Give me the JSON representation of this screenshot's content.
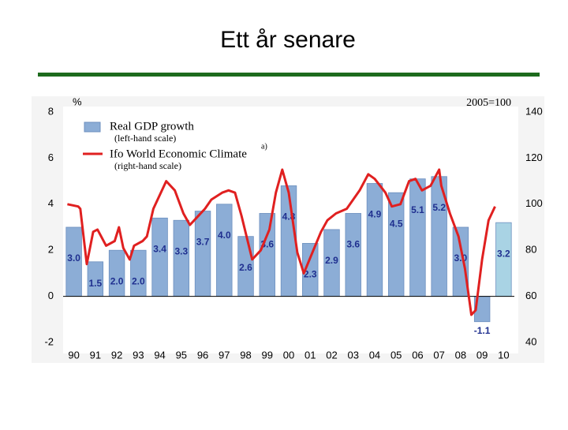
{
  "title": "Ett år senare",
  "chart_data": {
    "type": "bar",
    "categories": [
      "90",
      "91",
      "92",
      "93",
      "94",
      "95",
      "96",
      "97",
      "98",
      "99",
      "00",
      "01",
      "02",
      "03",
      "04",
      "05",
      "06",
      "07",
      "08",
      "09",
      "10"
    ],
    "ylabel": "%",
    "y2label": "2005=100",
    "ylim": [
      -2,
      8
    ],
    "yticks": [
      -2,
      0,
      2,
      4,
      6,
      8
    ],
    "y2lim": [
      40,
      140
    ],
    "y2ticks": [
      40,
      60,
      80,
      100,
      120,
      140
    ],
    "xlim": [
      1989.5,
      2010.5
    ],
    "series": [
      {
        "name": "Real GDP growth",
        "note_label": "(left-hand scale)",
        "color": "#8cadd6",
        "forecast_color": "#a9d3e4",
        "values": [
          3.0,
          1.5,
          2.0,
          2.0,
          3.4,
          3.3,
          3.7,
          4.0,
          2.6,
          3.6,
          4.8,
          2.3,
          2.9,
          3.6,
          4.9,
          4.5,
          5.1,
          5.2,
          3.0,
          -1.1,
          3.2
        ],
        "value_labels": [
          "3.0",
          "1.5",
          "2.0",
          "2.0",
          "3.4",
          "3.3",
          "3.7",
          "4.0",
          "2.6",
          "3.6",
          "4.8",
          "2.3",
          "2.9",
          "3.6",
          "4.9",
          "4.5",
          "5.1",
          "5.2",
          "3.0",
          "-1.1",
          "3.2"
        ]
      },
      {
        "name": "Ifo World Economic Climate",
        "superscript": "a)",
        "note_label": "(right-hand scale)",
        "color": "#e02020",
        "axis": "y2",
        "x": [
          1989.7,
          1990.2,
          1990.3,
          1990.6,
          1990.9,
          1991.1,
          1991.5,
          1991.9,
          1992.1,
          1992.3,
          1992.6,
          1992.8,
          1993.2,
          1993.4,
          1993.7,
          1994.3,
          1994.7,
          1995.1,
          1995.4,
          1995.7,
          1996.1,
          1996.4,
          1996.9,
          1997.2,
          1997.5,
          1997.8,
          1998.3,
          1998.7,
          1999.1,
          1999.4,
          1999.7,
          2000.0,
          2000.4,
          2000.7,
          2001.1,
          2001.5,
          2001.8,
          2002.2,
          2002.7,
          2003.3,
          2003.7,
          2004.0,
          2004.5,
          2004.8,
          2005.2,
          2005.6,
          2005.9,
          2006.2,
          2006.6,
          2007.0,
          2007.1,
          2007.5,
          2007.9,
          2008.2,
          2008.5,
          2008.7,
          2009.0,
          2009.3,
          2009.6
        ],
        "values": [
          100,
          99,
          98,
          74,
          88,
          89,
          82,
          84,
          90,
          81,
          76,
          82,
          84,
          86,
          98,
          110,
          106,
          96,
          91,
          94,
          98,
          102,
          105,
          106,
          105,
          95,
          76,
          80,
          89,
          105,
          115,
          105,
          79,
          70,
          79,
          88,
          93,
          96,
          98,
          106,
          113,
          111,
          105,
          99,
          100,
          110,
          111,
          106,
          108,
          115,
          108,
          96,
          86,
          72,
          52,
          54,
          76,
          93,
          99
        ]
      }
    ]
  }
}
